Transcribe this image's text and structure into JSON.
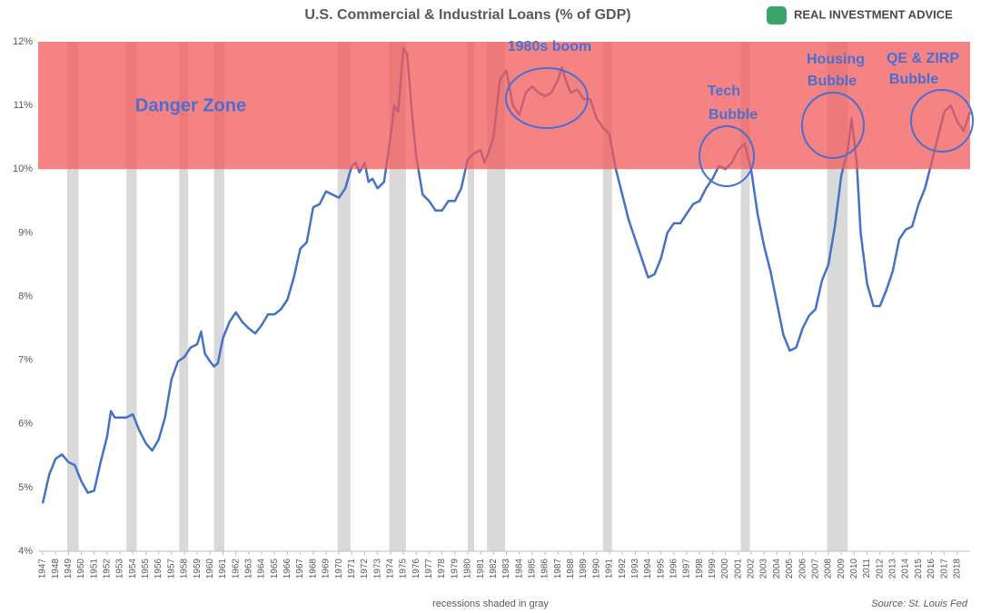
{
  "chart_data": {
    "type": "line",
    "title": "U.S. Commercial & Industrial Loans (% of GDP)",
    "logo": "REAL INVESTMENT ADVICE",
    "footnote": "recessions shaded in gray",
    "source": "Source: St. Louis Fed",
    "danger_zone": [
      10,
      12
    ],
    "danger_zone_color": "#f15a5a",
    "recession_color": "#d9d9d9",
    "annotations": {
      "danger": [
        "Danger Zone"
      ],
      "boom": [
        "1980s boom"
      ],
      "tech": [
        "Tech",
        "Bubble"
      ],
      "housing": [
        "Housing",
        "Bubble"
      ],
      "qe": [
        "QE & ZIRP",
        "Bubble"
      ]
    },
    "recessions": [
      [
        1948.9,
        1949.8
      ],
      [
        1953.5,
        1954.3
      ],
      [
        1957.6,
        1958.3
      ],
      [
        1960.3,
        1961.1
      ],
      [
        1969.9,
        1970.9
      ],
      [
        1973.9,
        1975.2
      ],
      [
        1980.0,
        1980.5
      ],
      [
        1981.5,
        1982.9
      ],
      [
        1990.5,
        1991.2
      ],
      [
        2001.2,
        2001.9
      ],
      [
        2007.9,
        2009.5
      ]
    ],
    "series": [
      {
        "color": "#4472c4",
        "x": [
          1947.0,
          1947.5,
          1948.0,
          1948.5,
          1949.0,
          1949.5,
          1950.0,
          1950.5,
          1951.0,
          1951.5,
          1952.0,
          1952.3,
          1952.6,
          1953.5,
          1954.0,
          1954.5,
          1955.0,
          1955.5,
          1956.0,
          1956.5,
          1957.0,
          1957.5,
          1958.0,
          1958.5,
          1959.0,
          1959.3,
          1959.6,
          1960.0,
          1960.3,
          1960.6,
          1961.0,
          1961.5,
          1962.0,
          1962.5,
          1963.0,
          1963.5,
          1964.0,
          1964.5,
          1965.0,
          1965.5,
          1966.0,
          1966.5,
          1967.0,
          1967.5,
          1968.0,
          1968.5,
          1969.0,
          1969.5,
          1970.0,
          1970.5,
          1971.0,
          1971.3,
          1971.6,
          1972.0,
          1972.3,
          1972.6,
          1973.0,
          1973.5,
          1974.0,
          1974.3,
          1974.6,
          1975.0,
          1975.3,
          1975.7,
          1976.0,
          1976.5,
          1977.0,
          1977.5,
          1978.0,
          1978.5,
          1979.0,
          1979.5,
          1980.0,
          1980.5,
          1981.0,
          1981.3,
          1981.6,
          1982.0,
          1982.5,
          1983.0,
          1983.5,
          1984.0,
          1984.5,
          1985.0,
          1985.5,
          1986.0,
          1986.5,
          1987.0,
          1987.3,
          1987.7,
          1988.0,
          1988.5,
          1989.0,
          1989.5,
          1990.0,
          1990.5,
          1991.0,
          1991.5,
          1992.0,
          1992.5,
          1993.0,
          1993.5,
          1994.0,
          1994.5,
          1995.0,
          1995.5,
          1996.0,
          1996.5,
          1997.0,
          1997.5,
          1998.0,
          1998.5,
          1999.0,
          1999.5,
          2000.0,
          2000.5,
          2001.0,
          2001.5,
          2002.0,
          2002.5,
          2003.0,
          2003.5,
          2004.0,
          2004.5,
          2005.0,
          2005.5,
          2006.0,
          2006.5,
          2007.0,
          2007.5,
          2008.0,
          2008.5,
          2009.0,
          2009.5,
          2009.8,
          2010.2,
          2010.5,
          2011.0,
          2011.5,
          2012.0,
          2012.5,
          2013.0,
          2013.5,
          2014.0,
          2014.5,
          2015.0,
          2015.5,
          2016.0,
          2016.5,
          2017.0,
          2017.5,
          2018.0,
          2018.5,
          2019.0
        ],
        "values": [
          4.75,
          5.2,
          5.45,
          5.52,
          5.4,
          5.35,
          5.1,
          4.92,
          4.95,
          5.4,
          5.8,
          6.2,
          6.1,
          6.1,
          6.15,
          5.9,
          5.7,
          5.58,
          5.75,
          6.1,
          6.7,
          6.98,
          7.05,
          7.2,
          7.25,
          7.45,
          7.1,
          6.98,
          6.9,
          6.95,
          7.35,
          7.6,
          7.75,
          7.6,
          7.5,
          7.42,
          7.55,
          7.72,
          7.72,
          7.8,
          7.95,
          8.3,
          8.75,
          8.85,
          9.4,
          9.45,
          9.65,
          9.6,
          9.55,
          9.7,
          10.05,
          10.1,
          9.95,
          10.1,
          9.8,
          9.85,
          9.7,
          9.8,
          10.5,
          11.0,
          10.9,
          11.9,
          11.8,
          10.8,
          10.2,
          9.6,
          9.5,
          9.35,
          9.35,
          9.5,
          9.5,
          9.7,
          10.15,
          10.25,
          10.3,
          10.1,
          10.25,
          10.5,
          11.4,
          11.55,
          11.0,
          10.85,
          11.2,
          11.3,
          11.2,
          11.15,
          11.2,
          11.4,
          11.6,
          11.35,
          11.2,
          11.25,
          11.1,
          11.1,
          10.8,
          10.65,
          10.55,
          10.0,
          9.6,
          9.2,
          8.9,
          8.6,
          8.3,
          8.35,
          8.6,
          9.0,
          9.15,
          9.15,
          9.3,
          9.45,
          9.5,
          9.7,
          9.85,
          10.05,
          10.0,
          10.1,
          10.3,
          10.4,
          10.0,
          9.3,
          8.8,
          8.4,
          7.9,
          7.4,
          7.15,
          7.2,
          7.5,
          7.7,
          7.8,
          8.25,
          8.5,
          9.1,
          9.9,
          10.3,
          10.8,
          10.1,
          9.0,
          8.2,
          7.85,
          7.85,
          8.1,
          8.4,
          8.9,
          9.05,
          9.1,
          9.45,
          9.7,
          10.1,
          10.5,
          10.9,
          11.0,
          10.75,
          10.6,
          10.9
        ]
      }
    ],
    "xlim": [
      1946.65,
      2019.0
    ],
    "xticks": [
      1947,
      1948,
      1949,
      1950,
      1951,
      1952,
      1953,
      1954,
      1955,
      1956,
      1957,
      1958,
      1959,
      1960,
      1961,
      1962,
      1963,
      1964,
      1965,
      1966,
      1967,
      1968,
      1969,
      1970,
      1971,
      1972,
      1973,
      1974,
      1975,
      1976,
      1977,
      1978,
      1979,
      1980,
      1981,
      1982,
      1983,
      1984,
      1985,
      1986,
      1987,
      1988,
      1989,
      1990,
      1991,
      1992,
      1993,
      1994,
      1995,
      1996,
      1997,
      1998,
      1999,
      2000,
      2001,
      2002,
      2003,
      2004,
      2005,
      2006,
      2007,
      2008,
      2009,
      2010,
      2011,
      2012,
      2013,
      2014,
      2015,
      2016,
      2017,
      2018
    ],
    "ylim": [
      4,
      12
    ],
    "yticks": [
      {
        "value": 4,
        "label": "4%"
      },
      {
        "value": 5,
        "label": "5%"
      },
      {
        "value": 6,
        "label": "6%"
      },
      {
        "value": 7,
        "label": "7%"
      },
      {
        "value": 8,
        "label": "8%"
      },
      {
        "value": 9,
        "label": "9%"
      },
      {
        "value": 10,
        "label": "10%"
      },
      {
        "value": 11,
        "label": "11%"
      },
      {
        "value": 12,
        "label": "12%"
      }
    ],
    "grid": false
  }
}
